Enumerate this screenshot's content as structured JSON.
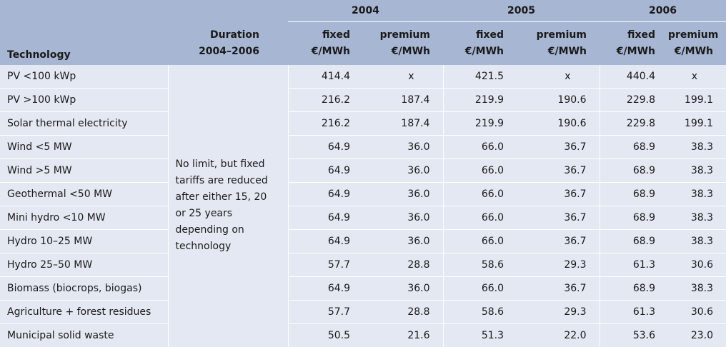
{
  "header": {
    "years": [
      "2004",
      "2005",
      "2006"
    ],
    "technology": "Technology",
    "duration_line1": "Duration",
    "duration_line2": "2004–2006",
    "fixed": "fixed",
    "premium": "premium",
    "unit": "€/MWh"
  },
  "note": "No limit, but fixed tariffs are reduced after either 15, 20 or 25 years depending on technology",
  "rows": [
    {
      "label": "PV <100 kWp",
      "v": [
        "414.4",
        "x",
        "421.5",
        "x",
        "440.4",
        "x"
      ]
    },
    {
      "label": "PV >100 kWp",
      "v": [
        "216.2",
        "187.4",
        "219.9",
        "190.6",
        "229.8",
        "199.1"
      ]
    },
    {
      "label": "Solar thermal electricity",
      "v": [
        "216.2",
        "187.4",
        "219.9",
        "190.6",
        "229.8",
        "199.1"
      ]
    },
    {
      "label": "Wind <5 MW",
      "v": [
        "64.9",
        "36.0",
        "66.0",
        "36.7",
        "68.9",
        "38.3"
      ]
    },
    {
      "label": "Wind >5 MW",
      "v": [
        "64.9",
        "36.0",
        "66.0",
        "36.7",
        "68.9",
        "38.3"
      ]
    },
    {
      "label": "Geothermal <50 MW",
      "v": [
        "64.9",
        "36.0",
        "66.0",
        "36.7",
        "68.9",
        "38.3"
      ]
    },
    {
      "label": "Mini hydro <10 MW",
      "v": [
        "64.9",
        "36.0",
        "66.0",
        "36.7",
        "68.9",
        "38.3"
      ]
    },
    {
      "label": "Hydro 10–25 MW",
      "v": [
        "64.9",
        "36.0",
        "66.0",
        "36.7",
        "68.9",
        "38.3"
      ]
    },
    {
      "label": "Hydro 25–50 MW",
      "v": [
        "57.7",
        "28.8",
        "58.6",
        "29.3",
        "61.3",
        "30.6"
      ]
    },
    {
      "label": "Biomass (biocrops, biogas)",
      "v": [
        "64.9",
        "36.0",
        "66.0",
        "36.7",
        "68.9",
        "38.3"
      ]
    },
    {
      "label": "Agriculture + forest residues",
      "v": [
        "57.7",
        "28.8",
        "58.6",
        "29.3",
        "61.3",
        "30.6"
      ]
    },
    {
      "label": "Municipal solid waste",
      "v": [
        "50.5",
        "21.6",
        "51.3",
        "22.0",
        "53.6",
        "23.0"
      ]
    }
  ]
}
